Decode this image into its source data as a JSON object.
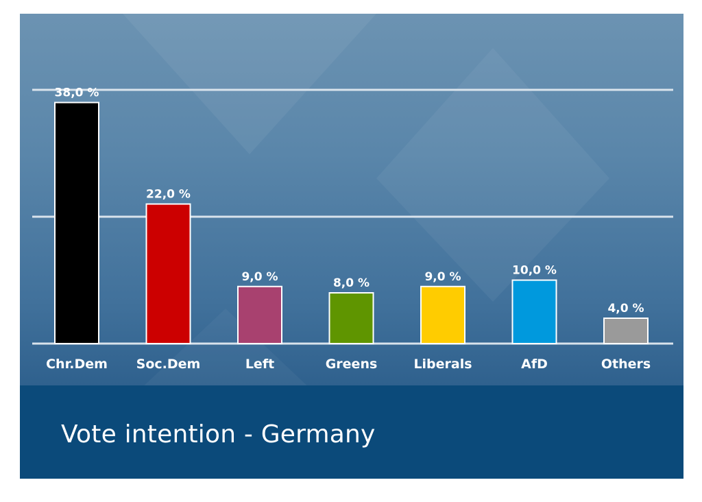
{
  "chart_data": {
    "type": "bar",
    "title": "Vote intention - Germany",
    "categories": [
      "Chr.Dem",
      "Soc.Dem",
      "Left",
      "Greens",
      "Liberals",
      "AfD",
      "Others"
    ],
    "values": [
      38.0,
      22.0,
      9.0,
      8.0,
      9.0,
      10.0,
      4.0
    ],
    "value_labels": [
      "38,0 %",
      "22,0 %",
      "9,0 %",
      "8,0 %",
      "9,0 %",
      "10,0 %",
      "4,0 %"
    ],
    "colors": [
      "#000000",
      "#cc0000",
      "#a8416f",
      "#5f9500",
      "#ffcc00",
      "#0099dd",
      "#9a9a9a"
    ],
    "ylim": [
      0,
      40
    ],
    "gridlines": [
      0,
      20,
      40
    ],
    "grid": true,
    "legend": "none",
    "xlabel": "",
    "ylabel": ""
  },
  "theme": {
    "gridline_color": "#d9e3ec",
    "bar_border_color": "#ffffff",
    "title_band_color": "#0b4a7a"
  }
}
